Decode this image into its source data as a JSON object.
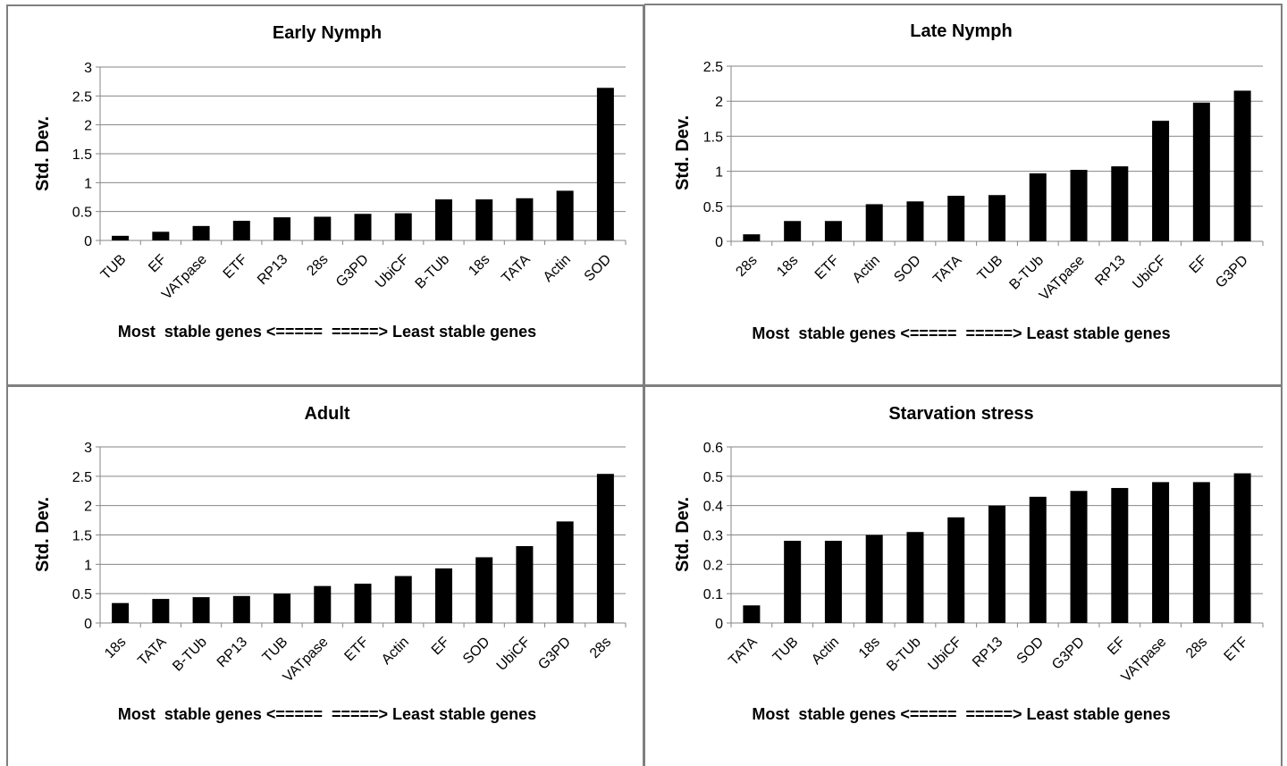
{
  "colors": {
    "bar": "#000000",
    "grid": "#868686",
    "axis": "#868686",
    "border": "#7f7f7f"
  },
  "chart_data": [
    {
      "type": "bar",
      "title": "Early Nymph",
      "ylabel": "Std. Dev.",
      "xlabel": "Most  stable genes <=====  =====> Least stable genes",
      "ylim": [
        0,
        3
      ],
      "yticks": [
        "0",
        "0.5",
        "1",
        "1.5",
        "2",
        "2.5",
        "3"
      ],
      "grid": true,
      "categories": [
        "TUB",
        "EF",
        "VATpase",
        "ETF",
        "RP13",
        "28s",
        "G3PD",
        "UbiCF",
        "B-TUb",
        "18s",
        "TATA",
        "Actin",
        "SOD"
      ],
      "values": [
        0.08,
        0.15,
        0.25,
        0.34,
        0.4,
        0.41,
        0.46,
        0.47,
        0.71,
        0.71,
        0.73,
        0.86,
        2.64
      ]
    },
    {
      "type": "bar",
      "title": "Late Nymph",
      "ylabel": "Std. Dev.",
      "xlabel": "Most  stable genes <=====  =====> Least stable genes",
      "ylim": [
        0,
        2.5
      ],
      "yticks": [
        "0",
        "0.5",
        "1",
        "1.5",
        "2",
        "2.5"
      ],
      "grid": true,
      "categories": [
        "28s",
        "18s",
        "ETF",
        "Actin",
        "SOD",
        "TATA",
        "TUB",
        "B-TUb",
        "VATpase",
        "RP13",
        "UbiCF",
        "EF",
        "G3PD"
      ],
      "values": [
        0.1,
        0.29,
        0.29,
        0.53,
        0.57,
        0.65,
        0.66,
        0.97,
        1.02,
        1.07,
        1.72,
        1.98,
        2.15
      ]
    },
    {
      "type": "bar",
      "title": "Adult",
      "ylabel": "Std. Dev.",
      "xlabel": "Most  stable genes <=====  =====> Least stable genes",
      "ylim": [
        0,
        3
      ],
      "yticks": [
        "0",
        "0.5",
        "1",
        "1.5",
        "2",
        "2.5",
        "3"
      ],
      "grid": true,
      "categories": [
        "18s",
        "TATA",
        "B-TUb",
        "RP13",
        "TUB",
        "VATpase",
        "ETF",
        "Actin",
        "EF",
        "SOD",
        "UbiCF",
        "G3PD",
        "28s"
      ],
      "values": [
        0.34,
        0.41,
        0.44,
        0.46,
        0.5,
        0.63,
        0.67,
        0.8,
        0.93,
        1.12,
        1.31,
        1.73,
        2.54
      ]
    },
    {
      "type": "bar",
      "title": "Starvation stress",
      "ylabel": "Std. Dev.",
      "xlabel": "Most  stable genes <=====  =====> Least stable genes",
      "ylim": [
        0,
        0.6
      ],
      "yticks": [
        "0",
        "0.1",
        "0.2",
        "0.3",
        "0.4",
        "0.5",
        "0.6"
      ],
      "grid": true,
      "categories": [
        "TATA",
        "TUB",
        "Actin",
        "18s",
        "B-TUb",
        "UbiCF",
        "RP13",
        "SOD",
        "G3PD",
        "EF",
        "VATpase",
        "28s",
        "ETF"
      ],
      "values": [
        0.06,
        0.28,
        0.28,
        0.3,
        0.31,
        0.36,
        0.4,
        0.43,
        0.45,
        0.46,
        0.48,
        0.48,
        0.51
      ]
    }
  ]
}
